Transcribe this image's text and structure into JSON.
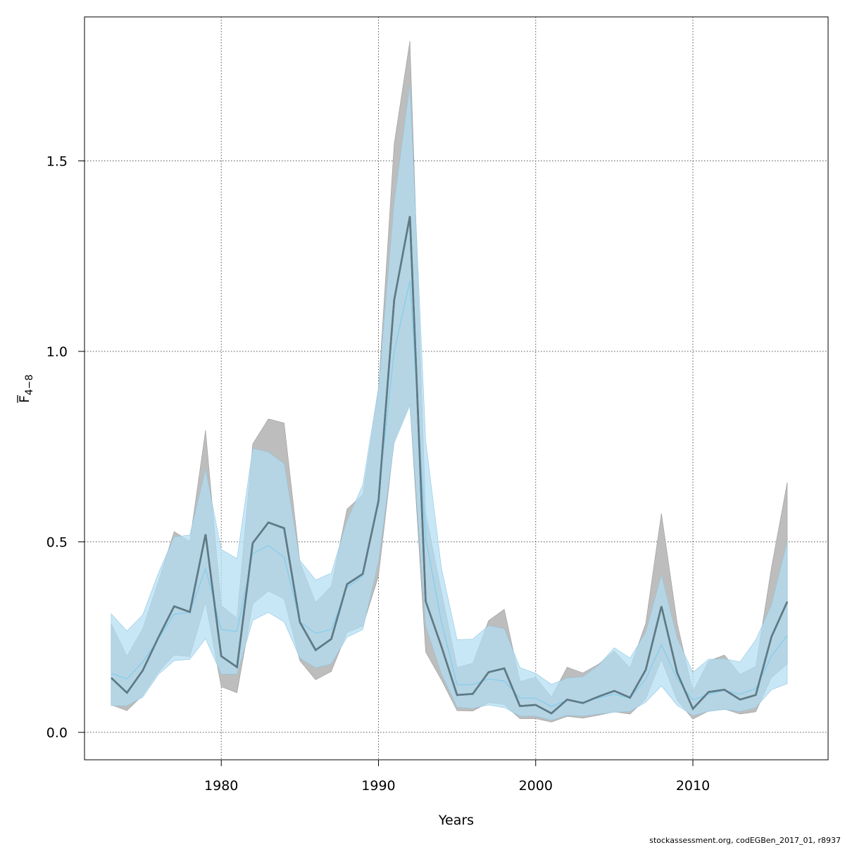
{
  "chart_data": {
    "type": "line",
    "title": "",
    "xlabel": "Years",
    "ylabel_main": "F",
    "ylabel_sub": "4−8",
    "xlim": [
      1971.3,
      2018.6
    ],
    "ylim": [
      -0.072,
      1.878
    ],
    "x_ticks": [
      1980,
      1990,
      2000,
      2010
    ],
    "y_ticks": [
      0.0,
      0.5,
      1.0,
      1.5
    ],
    "y_tick_labels": [
      "0.0",
      "0.5",
      "1.0",
      "1.5"
    ],
    "grid": true,
    "legend": "none",
    "x": [
      1973,
      1974,
      1975,
      1976,
      1977,
      1978,
      1979,
      1980,
      1981,
      1982,
      1983,
      1984,
      1985,
      1986,
      1987,
      1988,
      1989,
      1990,
      1991,
      1992,
      1993,
      1994,
      1995,
      1996,
      1997,
      1998,
      1999,
      2000,
      2001,
      2002,
      2003,
      2004,
      2005,
      2006,
      2007,
      2008,
      2009,
      2010,
      2011,
      2012,
      2013,
      2014,
      2015,
      2016
    ],
    "series": [
      {
        "color": "#5f7a86",
        "band_color": "#bdbdbd",
        "values": [
          0.143,
          0.104,
          0.162,
          0.249,
          0.331,
          0.316,
          0.52,
          0.2,
          0.171,
          0.497,
          0.551,
          0.536,
          0.289,
          0.216,
          0.245,
          0.389,
          0.416,
          0.607,
          1.135,
          1.355,
          0.344,
          0.226,
          0.098,
          0.101,
          0.158,
          0.168,
          0.069,
          0.072,
          0.05,
          0.086,
          0.077,
          0.094,
          0.109,
          0.091,
          0.164,
          0.331,
          0.156,
          0.062,
          0.106,
          0.112,
          0.086,
          0.098,
          0.251,
          0.343
        ],
        "lower": [
          0.072,
          0.057,
          0.097,
          0.158,
          0.203,
          0.199,
          0.341,
          0.12,
          0.104,
          0.337,
          0.371,
          0.35,
          0.188,
          0.138,
          0.16,
          0.262,
          0.279,
          0.41,
          0.766,
          0.864,
          0.211,
          0.138,
          0.057,
          0.056,
          0.078,
          0.073,
          0.036,
          0.036,
          0.027,
          0.042,
          0.037,
          0.045,
          0.054,
          0.048,
          0.087,
          0.191,
          0.084,
          0.035,
          0.056,
          0.061,
          0.048,
          0.054,
          0.144,
          0.179
        ],
        "upper": [
          0.285,
          0.2,
          0.272,
          0.396,
          0.527,
          0.501,
          0.793,
          0.333,
          0.3,
          0.757,
          0.823,
          0.812,
          0.447,
          0.341,
          0.384,
          0.586,
          0.624,
          0.9,
          1.545,
          1.815,
          0.576,
          0.37,
          0.171,
          0.181,
          0.293,
          0.323,
          0.134,
          0.144,
          0.093,
          0.171,
          0.156,
          0.179,
          0.213,
          0.169,
          0.286,
          0.575,
          0.286,
          0.107,
          0.187,
          0.203,
          0.152,
          0.173,
          0.433,
          0.656
        ]
      },
      {
        "color": "#87ceeb",
        "band_color": "#b3def2",
        "values": [
          0.155,
          0.14,
          0.185,
          0.245,
          0.31,
          0.315,
          0.43,
          0.27,
          0.265,
          0.47,
          0.49,
          0.46,
          0.29,
          0.26,
          0.27,
          0.38,
          0.41,
          0.62,
          1.0,
          1.185,
          0.51,
          0.29,
          0.125,
          0.125,
          0.14,
          0.135,
          0.09,
          0.09,
          0.068,
          0.085,
          0.08,
          0.09,
          0.1,
          0.09,
          0.14,
          0.23,
          0.14,
          0.085,
          0.1,
          0.11,
          0.1,
          0.115,
          0.2,
          0.255
        ],
        "lower": [
          0.07,
          0.07,
          0.092,
          0.152,
          0.188,
          0.192,
          0.246,
          0.153,
          0.153,
          0.294,
          0.315,
          0.29,
          0.195,
          0.17,
          0.18,
          0.25,
          0.27,
          0.45,
          0.76,
          0.858,
          0.28,
          0.154,
          0.066,
          0.063,
          0.072,
          0.065,
          0.043,
          0.043,
          0.032,
          0.045,
          0.043,
          0.048,
          0.053,
          0.055,
          0.079,
          0.122,
          0.071,
          0.044,
          0.055,
          0.06,
          0.055,
          0.065,
          0.112,
          0.128
        ],
        "upper": [
          0.311,
          0.266,
          0.308,
          0.418,
          0.513,
          0.518,
          0.69,
          0.48,
          0.456,
          0.745,
          0.736,
          0.705,
          0.451,
          0.4,
          0.418,
          0.555,
          0.65,
          0.905,
          1.39,
          1.7,
          0.765,
          0.432,
          0.243,
          0.245,
          0.28,
          0.272,
          0.17,
          0.155,
          0.126,
          0.142,
          0.146,
          0.176,
          0.222,
          0.195,
          0.262,
          0.413,
          0.247,
          0.157,
          0.192,
          0.193,
          0.185,
          0.243,
          0.334,
          0.5
        ]
      }
    ]
  },
  "footer": {
    "credit": "stockassessment.org, codEGBen_2017_01, r8937"
  }
}
